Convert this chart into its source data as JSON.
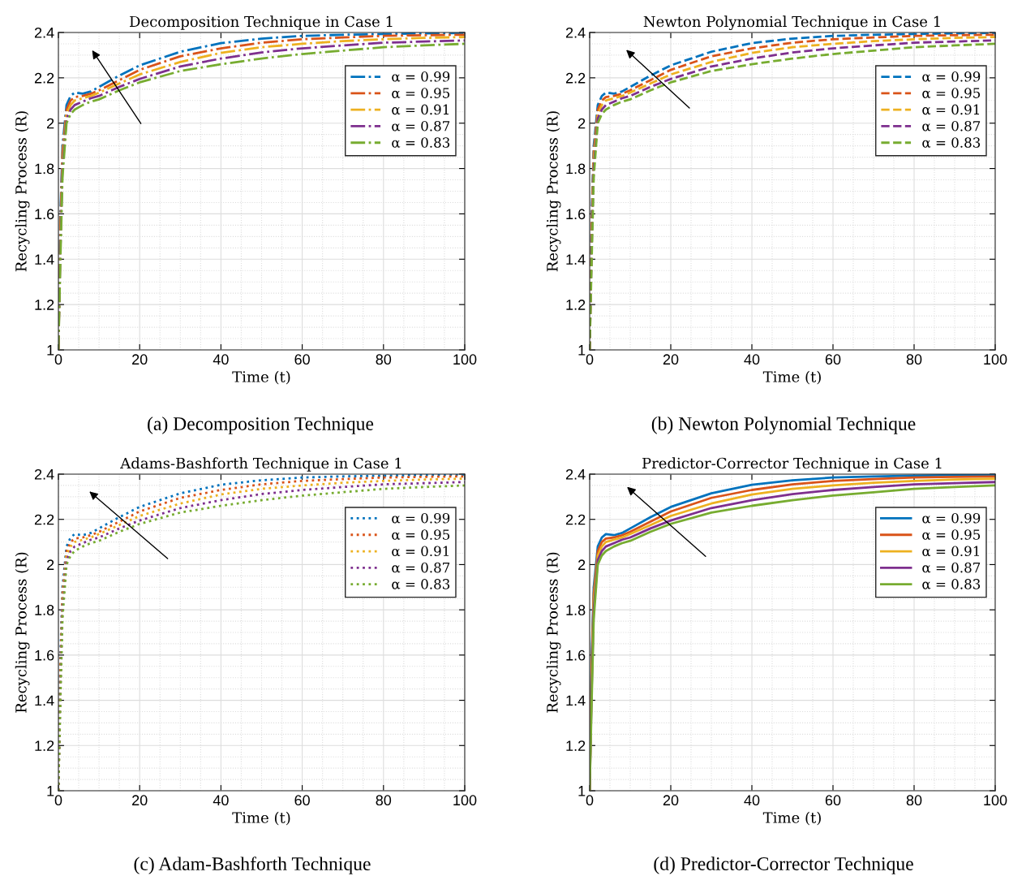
{
  "chart_data": [
    {
      "type": "line",
      "title": "Decomposition Technique in Case 1",
      "xlabel": "Time (t)",
      "ylabel": "Recycling Process (R)",
      "annotations": [
        "(a) Decomposition Technique"
      ],
      "x": [
        0,
        0.5,
        1,
        2,
        3,
        4,
        6,
        8,
        10,
        15,
        20,
        30,
        40,
        50,
        60,
        70,
        80,
        90,
        100
      ],
      "xlim": [
        0,
        100
      ],
      "xticks": [
        0,
        20,
        40,
        60,
        80,
        100
      ],
      "ylim": [
        1,
        2.4
      ],
      "yticks": [
        1,
        1.2,
        1.4,
        1.6,
        1.8,
        2,
        2.2,
        2.4
      ],
      "grid": true,
      "legend": "top right",
      "line_style": "dashdot",
      "series": [
        {
          "name": "α = 0.99",
          "color": "#0072bd",
          "values": [
            1,
            1.6,
            1.9,
            2.08,
            2.12,
            2.135,
            2.13,
            2.14,
            2.16,
            2.21,
            2.255,
            2.315,
            2.353,
            2.373,
            2.385,
            2.39,
            2.393,
            2.396,
            2.398
          ]
        },
        {
          "name": "α = 0.95",
          "color": "#d95319",
          "values": [
            1,
            1.55,
            1.87,
            2.06,
            2.1,
            2.115,
            2.12,
            2.13,
            2.145,
            2.19,
            2.235,
            2.295,
            2.33,
            2.355,
            2.37,
            2.378,
            2.385,
            2.388,
            2.39
          ]
        },
        {
          "name": "α = 0.91",
          "color": "#edb120",
          "values": [
            1,
            1.5,
            1.84,
            2.04,
            2.08,
            2.1,
            2.11,
            2.12,
            2.135,
            2.175,
            2.215,
            2.27,
            2.31,
            2.335,
            2.35,
            2.362,
            2.37,
            2.376,
            2.38
          ]
        },
        {
          "name": "α = 0.87",
          "color": "#7e2f8e",
          "values": [
            1,
            1.45,
            1.8,
            2.02,
            2.06,
            2.08,
            2.095,
            2.11,
            2.12,
            2.16,
            2.195,
            2.25,
            2.285,
            2.312,
            2.33,
            2.343,
            2.355,
            2.36,
            2.365
          ]
        },
        {
          "name": "α = 0.83",
          "color": "#77ac30",
          "values": [
            1,
            1.4,
            1.76,
            2.0,
            2.04,
            2.06,
            2.08,
            2.095,
            2.105,
            2.145,
            2.18,
            2.23,
            2.26,
            2.285,
            2.305,
            2.32,
            2.335,
            2.343,
            2.35
          ]
        }
      ]
    },
    {
      "type": "line",
      "title": "Newton Polynomial Technique in Case 1",
      "xlabel": "Time (t)",
      "ylabel": "Recycling Process (R)",
      "annotations": [
        "(b) Newton Polynomial Technique"
      ],
      "x": [
        0,
        0.5,
        1,
        2,
        3,
        4,
        6,
        8,
        10,
        15,
        20,
        30,
        40,
        50,
        60,
        70,
        80,
        90,
        100
      ],
      "xlim": [
        0,
        100
      ],
      "xticks": [
        0,
        20,
        40,
        60,
        80,
        100
      ],
      "ylim": [
        1,
        2.4
      ],
      "yticks": [
        1,
        1.2,
        1.4,
        1.6,
        1.8,
        2,
        2.2,
        2.4
      ],
      "grid": true,
      "legend": "top right",
      "line_style": "dashed",
      "series": [
        {
          "name": "α = 0.99",
          "color": "#0072bd",
          "values": [
            1,
            1.6,
            1.9,
            2.08,
            2.12,
            2.135,
            2.13,
            2.14,
            2.16,
            2.21,
            2.255,
            2.315,
            2.353,
            2.373,
            2.385,
            2.39,
            2.393,
            2.396,
            2.398
          ]
        },
        {
          "name": "α = 0.95",
          "color": "#d95319",
          "values": [
            1,
            1.55,
            1.87,
            2.06,
            2.1,
            2.115,
            2.12,
            2.13,
            2.145,
            2.19,
            2.235,
            2.295,
            2.33,
            2.355,
            2.37,
            2.378,
            2.385,
            2.388,
            2.39
          ]
        },
        {
          "name": "α = 0.91",
          "color": "#edb120",
          "values": [
            1,
            1.5,
            1.84,
            2.04,
            2.08,
            2.1,
            2.11,
            2.12,
            2.135,
            2.175,
            2.215,
            2.27,
            2.31,
            2.335,
            2.35,
            2.362,
            2.37,
            2.376,
            2.38
          ]
        },
        {
          "name": "α = 0.87",
          "color": "#7e2f8e",
          "values": [
            1,
            1.45,
            1.8,
            2.02,
            2.06,
            2.08,
            2.095,
            2.11,
            2.12,
            2.16,
            2.195,
            2.25,
            2.285,
            2.312,
            2.33,
            2.343,
            2.355,
            2.36,
            2.365
          ]
        },
        {
          "name": "α = 0.83",
          "color": "#77ac30",
          "values": [
            1,
            1.4,
            1.76,
            2.0,
            2.04,
            2.06,
            2.08,
            2.095,
            2.105,
            2.145,
            2.18,
            2.23,
            2.26,
            2.285,
            2.305,
            2.32,
            2.335,
            2.343,
            2.35
          ]
        }
      ]
    },
    {
      "type": "line",
      "title": "Adams-Bashforth Technique in Case 1",
      "xlabel": "Time (t)",
      "ylabel": "Recycling Process (R)",
      "annotations": [
        "(c) Adam-Bashforth Technique"
      ],
      "x": [
        0,
        0.5,
        1,
        2,
        3,
        4,
        6,
        8,
        10,
        15,
        20,
        30,
        40,
        50,
        60,
        70,
        80,
        90,
        100
      ],
      "xlim": [
        0,
        100
      ],
      "xticks": [
        0,
        20,
        40,
        60,
        80,
        100
      ],
      "ylim": [
        1,
        2.4
      ],
      "yticks": [
        1,
        1.2,
        1.4,
        1.6,
        1.8,
        2,
        2.2,
        2.4
      ],
      "grid": true,
      "legend": "top right",
      "line_style": "dotted",
      "series": [
        {
          "name": "α = 0.99",
          "color": "#0072bd",
          "values": [
            1,
            1.6,
            1.9,
            2.08,
            2.12,
            2.135,
            2.13,
            2.14,
            2.16,
            2.21,
            2.255,
            2.315,
            2.353,
            2.373,
            2.385,
            2.39,
            2.393,
            2.396,
            2.398
          ]
        },
        {
          "name": "α = 0.95",
          "color": "#d95319",
          "values": [
            1,
            1.55,
            1.87,
            2.06,
            2.1,
            2.115,
            2.12,
            2.13,
            2.145,
            2.19,
            2.235,
            2.295,
            2.33,
            2.355,
            2.37,
            2.378,
            2.385,
            2.388,
            2.39
          ]
        },
        {
          "name": "α = 0.91",
          "color": "#edb120",
          "values": [
            1,
            1.5,
            1.84,
            2.04,
            2.08,
            2.1,
            2.11,
            2.12,
            2.135,
            2.175,
            2.215,
            2.27,
            2.31,
            2.335,
            2.35,
            2.362,
            2.37,
            2.376,
            2.38
          ]
        },
        {
          "name": "α = 0.87",
          "color": "#7e2f8e",
          "values": [
            1,
            1.45,
            1.8,
            2.02,
            2.06,
            2.08,
            2.095,
            2.11,
            2.12,
            2.16,
            2.195,
            2.25,
            2.285,
            2.312,
            2.33,
            2.343,
            2.355,
            2.36,
            2.365
          ]
        },
        {
          "name": "α = 0.83",
          "color": "#77ac30",
          "values": [
            1,
            1.4,
            1.76,
            2.0,
            2.04,
            2.06,
            2.08,
            2.095,
            2.105,
            2.145,
            2.18,
            2.23,
            2.26,
            2.285,
            2.305,
            2.32,
            2.335,
            2.343,
            2.35
          ]
        }
      ]
    },
    {
      "type": "line",
      "title": "Predictor-Corrector Technique in Case 1",
      "xlabel": "Time (t)",
      "ylabel": "Recycling Process (R)",
      "annotations": [
        "(d) Predictor-Corrector Technique"
      ],
      "x": [
        0,
        0.5,
        1,
        2,
        3,
        4,
        6,
        8,
        10,
        15,
        20,
        30,
        40,
        50,
        60,
        70,
        80,
        90,
        100
      ],
      "xlim": [
        0,
        100
      ],
      "xticks": [
        0,
        20,
        40,
        60,
        80,
        100
      ],
      "ylim": [
        1,
        2.4
      ],
      "yticks": [
        1,
        1.2,
        1.4,
        1.6,
        1.8,
        2,
        2.2,
        2.4
      ],
      "grid": true,
      "legend": "top right",
      "line_style": "solid",
      "series": [
        {
          "name": "α = 0.99",
          "color": "#0072bd",
          "values": [
            1,
            1.6,
            1.9,
            2.08,
            2.12,
            2.135,
            2.13,
            2.14,
            2.16,
            2.21,
            2.255,
            2.315,
            2.353,
            2.373,
            2.385,
            2.39,
            2.393,
            2.396,
            2.398
          ]
        },
        {
          "name": "α = 0.95",
          "color": "#d95319",
          "values": [
            1,
            1.55,
            1.87,
            2.06,
            2.1,
            2.115,
            2.12,
            2.13,
            2.145,
            2.19,
            2.235,
            2.295,
            2.33,
            2.355,
            2.37,
            2.378,
            2.385,
            2.388,
            2.39
          ]
        },
        {
          "name": "α = 0.91",
          "color": "#edb120",
          "values": [
            1,
            1.5,
            1.84,
            2.04,
            2.08,
            2.1,
            2.11,
            2.12,
            2.135,
            2.175,
            2.215,
            2.27,
            2.31,
            2.335,
            2.35,
            2.362,
            2.37,
            2.376,
            2.38
          ]
        },
        {
          "name": "α = 0.87",
          "color": "#7e2f8e",
          "values": [
            1,
            1.45,
            1.8,
            2.02,
            2.06,
            2.08,
            2.095,
            2.11,
            2.12,
            2.16,
            2.195,
            2.25,
            2.285,
            2.312,
            2.33,
            2.343,
            2.355,
            2.36,
            2.365
          ]
        },
        {
          "name": "α = 0.83",
          "color": "#77ac30",
          "values": [
            1,
            1.4,
            1.76,
            2.0,
            2.04,
            2.06,
            2.08,
            2.095,
            2.105,
            2.145,
            2.18,
            2.23,
            2.26,
            2.285,
            2.305,
            2.32,
            2.335,
            2.343,
            2.35
          ]
        }
      ]
    }
  ]
}
